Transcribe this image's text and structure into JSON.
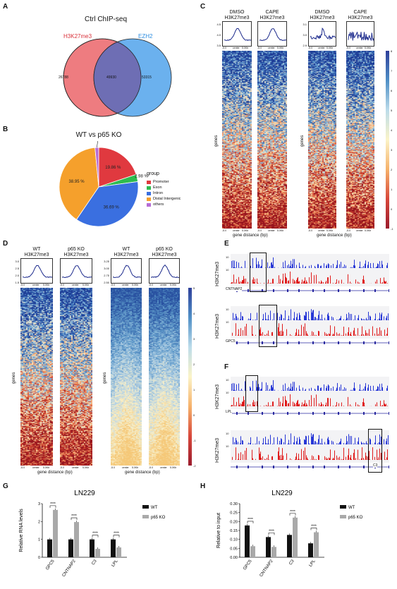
{
  "panels": {
    "A": "A",
    "B": "B",
    "C": "C",
    "D": "D",
    "E": "E",
    "F": "F",
    "G": "G",
    "H": "H"
  },
  "venn": {
    "title": "Ctrl ChIP-seq",
    "left_label": "H3K27me3",
    "right_label": "EZH2",
    "left_only": "26788",
    "overlap": "49930",
    "right_only": "53315",
    "left_color": "#ee7c80",
    "right_color": "#6bb1ee",
    "overlap_color": "#6e6eb4"
  },
  "pie": {
    "title": "WT vs p65 KO",
    "legend_title": "group",
    "slices": [
      {
        "label": "Promoter",
        "pct": 19.86,
        "text": "19.86 %",
        "color": "#e0393f"
      },
      {
        "label": "Exon",
        "pct": 2.98,
        "text": "2.98 %",
        "color": "#2fbb4f"
      },
      {
        "label": "Intron",
        "pct": 36.69,
        "text": "36.69 %",
        "color": "#3a6fe0"
      },
      {
        "label": "Distal Intergenic",
        "pct": 38.95,
        "text": "38.95 %",
        "color": "#f5a02c"
      },
      {
        "label": "others",
        "pct": 1.51,
        "text": "1.51 %",
        "color": "#b66cd6"
      }
    ]
  },
  "heatC": {
    "cols": [
      {
        "line1": "DMSO",
        "line2": "H3K27me3"
      },
      {
        "line1": "CAPE",
        "line2": "H3K27me3"
      },
      {
        "line1": "DMSO",
        "line2": "H3K27me3"
      },
      {
        "line1": "CAPE",
        "line2": "H3K27me3"
      }
    ],
    "ylabel": "genes",
    "xlabel": "gene distance (bp)",
    "ticks": [
      "-5.0",
      "center",
      "5.0Kb"
    ],
    "left_yticks": [
      "4.5",
      "4.0",
      "3.5"
    ],
    "right_yticks": [
      "3.1",
      "3.0",
      "2.9"
    ],
    "cbar": [
      "8",
      "7",
      "6",
      "5",
      "4",
      "3",
      "2",
      "1",
      "0",
      "-1"
    ]
  },
  "heatD": {
    "cols": [
      {
        "line1": "WT",
        "line2": "H3K27me3"
      },
      {
        "line1": "p65 KO",
        "line2": "H3K27me3"
      },
      {
        "line1": "WT",
        "line2": "H3K27me3"
      },
      {
        "line1": "p65 KO",
        "line2": "H3K27me3"
      }
    ],
    "ylabel": "genes",
    "xlabel": "gene distance (bp)",
    "ticks": [
      "-5.0",
      "center",
      "5.0Kb"
    ],
    "left_yticks": [
      "3.0",
      "2.5",
      "2.0",
      "1.5"
    ],
    "right_yticks": [
      "3.25",
      "3.00",
      "2.75",
      "2.50"
    ],
    "cbar": [
      "5",
      "4",
      "3",
      "2",
      "1",
      "0",
      "-1",
      "-2"
    ]
  },
  "tracksE": {
    "ylabel": "H3K27me3",
    "wt": "WT",
    "ko": "p65 KO",
    "scale": "10",
    "genes": [
      "CNTNAP2",
      "GPC5"
    ]
  },
  "tracksF": {
    "ylabel": "H3K27me3",
    "wt": "WT",
    "ko": "p65 KO",
    "scale": "10",
    "genes": [
      "LPL",
      "C3"
    ]
  },
  "chart_data": [
    {
      "type": "bar",
      "title": "LN229",
      "ylabel": "Relative RNA levels",
      "categories": [
        "GPC5",
        "CNTNAP2",
        "C3",
        "LPL"
      ],
      "series": [
        {
          "name": "WT",
          "values": [
            1.0,
            1.0,
            1.0,
            1.0
          ]
        },
        {
          "name": "p65 KO",
          "values": [
            2.65,
            1.97,
            0.47,
            0.55
          ]
        }
      ],
      "ylim": [
        0,
        3
      ],
      "yticks": [
        "0",
        "1",
        "2",
        "3"
      ],
      "sig": "****",
      "colors": [
        "#111111",
        "#a9a9a9"
      ]
    },
    {
      "type": "bar",
      "title": "LN229",
      "ylabel": "Relative to input",
      "categories": [
        "GPC5",
        "CNTNAP2",
        "C3",
        "LPL"
      ],
      "series": [
        {
          "name": "WT",
          "values": [
            0.178,
            0.113,
            0.125,
            0.078
          ]
        },
        {
          "name": "p65 KO",
          "values": [
            0.062,
            0.058,
            0.222,
            0.14
          ]
        }
      ],
      "ylim": [
        0,
        0.3
      ],
      "yticks": [
        "0.00",
        "0.05",
        "0.10",
        "0.15",
        "0.20",
        "0.25",
        "0.30"
      ],
      "sig": "****",
      "colors": [
        "#111111",
        "#a9a9a9"
      ]
    }
  ]
}
